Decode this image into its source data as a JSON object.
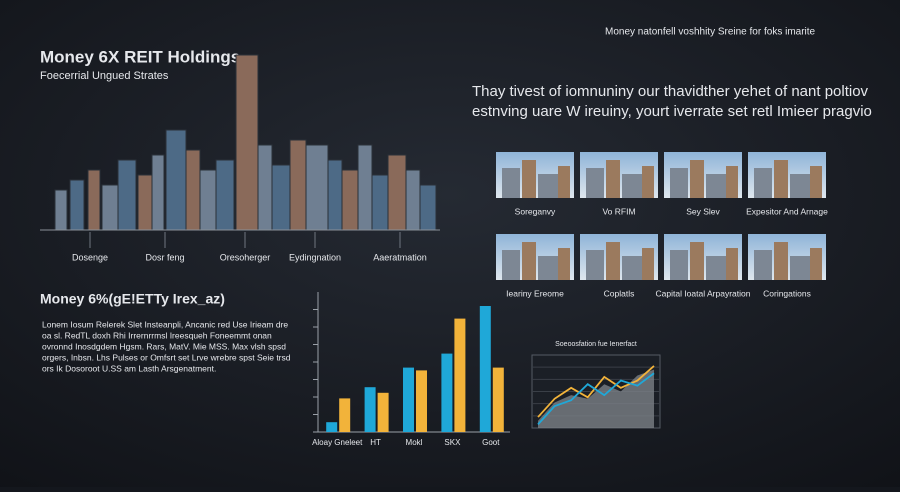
{
  "header": {
    "note": "Money natonfell voshhity Sreine for foks imarite"
  },
  "hero": {
    "title": "Money 6X REIT Holdings",
    "subtitle": "Foecerrial Ungued Strates",
    "tagline": [
      "Thay tivest of iomnuniny our thavidther yehet of nant poltiov",
      "estnving uare W ireuiny, yourt iverrate set retl Imieer pragvio"
    ]
  },
  "skyline": {
    "labels": [
      "Dosenge",
      "Dosr feng",
      "Oresoherger",
      "Eydingnation",
      "Aaeratmation"
    ]
  },
  "gallery": {
    "rows": [
      [
        "Soreganvy",
        "Vo RFIM",
        "Sey Slev",
        "Expesitor And Arnage"
      ],
      [
        "Ieariny Ereome",
        "Coplatls",
        "Capital Ioatal Arpayration",
        "Coringations"
      ]
    ]
  },
  "summary": {
    "title": "Money 6%(gE!ETTy Irex_az)",
    "lines": [
      "Lonem Iosum Relerek Slet Insteanpli, Ancanic red Use Irieam dre",
      "oa sl. RedTL doxh Rhi Irrernrrmsl Ireesqueh Foneemmt onan",
      "ovronnd Inosdgdem Hgsm. Rars, MatV. Mie MSS. Max vlsh spsd",
      "orgers, Inbsn. Lhs Pulses or Omfsrt set Lrve wrebre spst Seie trsd",
      "ors Ik Dosoroot U.SS am Lasth Arsgenatment."
    ]
  },
  "bar_chart": {
    "type": "bar",
    "categories": [
      "Aloay Gneleet",
      "HT",
      "Mokl",
      "SKX",
      "Goot"
    ],
    "ylim": [
      0,
      100
    ],
    "yticks": [
      0,
      12.5,
      25,
      37.5,
      50,
      62.5,
      75,
      87.5
    ],
    "series": [
      {
        "color": "#1fa8d8",
        "values": [
          7,
          32,
          46,
          56,
          90
        ]
      },
      {
        "color": "#f2b33a",
        "values": [
          24,
          28,
          44,
          81,
          46
        ]
      }
    ]
  },
  "line_chart": {
    "type": "line",
    "title": "Soeoosfation fue Ienerfact",
    "categories": [
      null,
      null,
      null,
      null,
      null,
      null,
      null,
      null
    ],
    "ylim": [
      0,
      100
    ],
    "series": [
      {
        "color": "#7b7f86",
        "values": [
          10,
          35,
          45,
          40,
          60,
          50,
          72,
          80
        ]
      },
      {
        "color": "#f2b33a",
        "values": [
          15,
          40,
          55,
          42,
          70,
          55,
          65,
          85
        ]
      },
      {
        "color": "#1fa8d8",
        "values": [
          5,
          30,
          38,
          60,
          45,
          65,
          58,
          75
        ]
      }
    ]
  }
}
